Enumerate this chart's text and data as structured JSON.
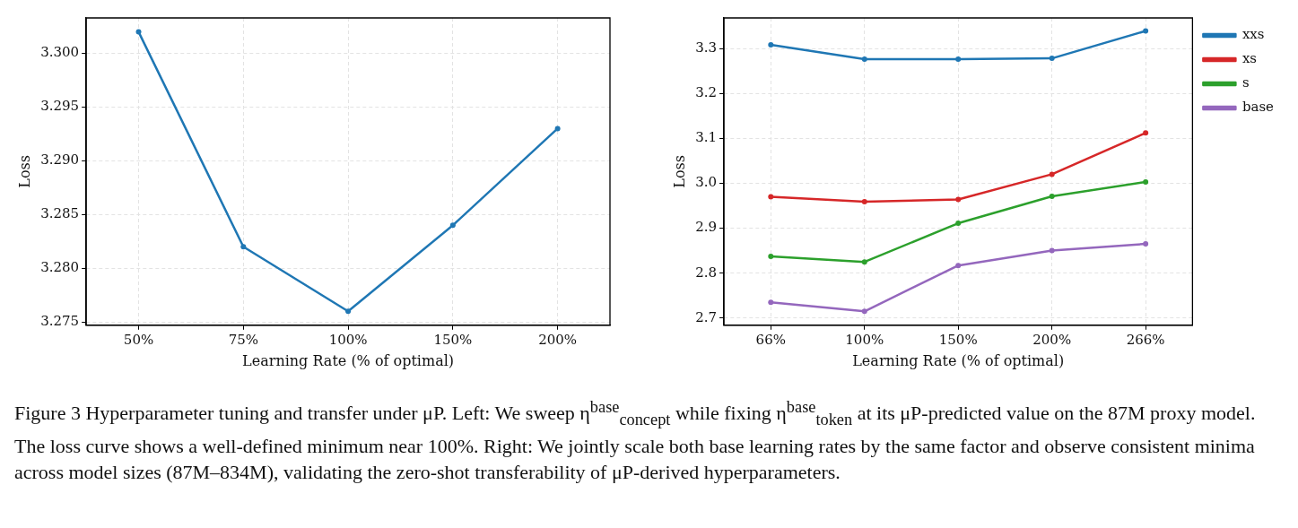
{
  "chart_data": [
    {
      "type": "line",
      "xlabel": "Learning Rate (% of optimal)",
      "ylabel": "Loss",
      "categories": [
        "50%",
        "75%",
        "100%",
        "150%",
        "200%"
      ],
      "series": [
        {
          "color": "#1f77b4",
          "values": [
            3.302,
            3.282,
            3.276,
            3.284,
            3.293
          ]
        }
      ],
      "ylim": [
        3.2747,
        3.3033
      ],
      "yticks": [
        3.275,
        {
          "value": 3.28,
          "label": "3.280"
        },
        3.285,
        {
          "value": 3.29,
          "label": "3.290"
        },
        3.295,
        {
          "value": 3.3,
          "label": "3.300"
        }
      ],
      "grid": true,
      "marker": "circle",
      "line_style": "solid"
    },
    {
      "type": "line",
      "xlabel": "Learning Rate (% of optimal)",
      "ylabel": "Loss",
      "categories": [
        "66%",
        "100%",
        "150%",
        "200%",
        "266%"
      ],
      "series": [
        {
          "name": "xxs",
          "color": "#1f77b4",
          "values": [
            3.308,
            3.276,
            3.276,
            3.278,
            3.339
          ]
        },
        {
          "name": "xs",
          "color": "#d62728",
          "values": [
            2.97,
            2.959,
            2.964,
            3.02,
            3.112
          ]
        },
        {
          "name": "s",
          "color": "#2ca02c",
          "values": [
            2.837,
            2.825,
            2.911,
            2.971,
            3.003
          ]
        },
        {
          "name": "base",
          "color": "#9467bd",
          "values": [
            2.735,
            2.715,
            2.817,
            2.85,
            2.865
          ]
        }
      ],
      "ylim": [
        2.684,
        3.368
      ],
      "yticks": [
        2.7,
        2.8,
        2.9,
        {
          "value": 3.0,
          "label": "3.0"
        },
        3.1,
        3.2,
        3.3
      ],
      "grid": true,
      "legend": "top right",
      "marker": "circle",
      "line_style": "solid",
      "annotations": [
        "Figure 3  Hyperparameter tuning and transfer under μP. Left: We sweep η$^{base}$$_{concept}$ while fixing η$^{base}$$_{token}$ at its μP-predicted value on the 87M proxy model. The loss curve shows a well-defined minimum near 100%. Right: We jointly scale both base learning rates by the same factor and observe consistent minima across model sizes (87M–834M), validating the zero-shot transferability of μP-derived hyperparameters."
      ]
    }
  ]
}
